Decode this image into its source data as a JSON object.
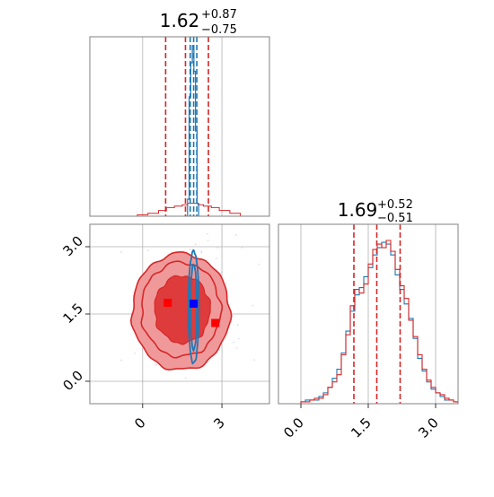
{
  "colors": {
    "red": "#d62728",
    "red_fill_outer": "#f0999a",
    "red_fill_inner": "#de3b3c",
    "blue": "#1f77b4",
    "grid": "#b0b0b0",
    "frame": "#808080"
  },
  "chart_data": [
    {
      "type": "histogram",
      "panel": "top-left",
      "title": {
        "value": "1.62",
        "plus": "+0.87",
        "minus": "−0.75"
      },
      "xlim": [
        -2.0,
        4.8
      ],
      "quantile_lines_red": [
        0.87,
        1.62,
        2.49
      ],
      "quantile_lines_blue": [
        1.8,
        1.93,
        2.05
      ],
      "gridlines_x": [
        0,
        3
      ],
      "red_bins": {
        "edges": [
          -2.0,
          -0.2,
          0.2,
          0.6,
          0.9,
          1.2,
          1.5,
          1.7,
          1.9,
          2.1,
          2.3,
          2.6,
          2.9,
          3.3,
          3.7,
          4.8
        ],
        "counts": [
          0,
          1,
          2,
          4,
          6,
          7,
          8,
          9,
          9,
          8,
          7,
          6,
          4,
          2,
          0
        ]
      },
      "blue_bins": {
        "edges": [
          1.7,
          1.76,
          1.82,
          1.88,
          1.94,
          2.0,
          2.06,
          2.12
        ],
        "counts": [
          20,
          140,
          180,
          200,
          170,
          100,
          15
        ]
      }
    },
    {
      "type": "scatter",
      "panel": "bottom-left",
      "xlim": [
        -2.0,
        4.8
      ],
      "ylim": [
        -0.5,
        3.5
      ],
      "x_ticks": [
        "0",
        "3"
      ],
      "x_tick_values": [
        0,
        3
      ],
      "y_ticks": [
        "0.0",
        "1.5",
        "3.0"
      ],
      "y_tick_values": [
        0.0,
        1.5,
        3.0
      ],
      "red_contours": [
        {
          "cx": 1.45,
          "cy": 1.55,
          "rx": 1.85,
          "ry": 1.3
        },
        {
          "cx": 1.45,
          "cy": 1.6,
          "rx": 1.5,
          "ry": 1.05
        },
        {
          "cx": 1.5,
          "cy": 1.6,
          "rx": 1.05,
          "ry": 0.75
        }
      ],
      "blue_contours": [
        {
          "cx": 1.93,
          "cy": 1.65,
          "rx": 0.2,
          "ry": 1.25
        },
        {
          "cx": 1.93,
          "cy": 1.65,
          "rx": 0.12,
          "ry": 0.95
        }
      ],
      "red_markers": [
        {
          "x": 0.95,
          "y": 1.75
        },
        {
          "x": 2.75,
          "y": 1.3
        }
      ],
      "blue_markers": [
        {
          "x": 1.93,
          "y": 1.73
        }
      ]
    },
    {
      "type": "histogram",
      "panel": "bottom-right",
      "title": {
        "value": "1.69",
        "plus": "+0.52",
        "minus": "−0.51"
      },
      "xlim": [
        -0.5,
        3.5
      ],
      "x_ticks": [
        "0.0",
        "1.5",
        "3.0"
      ],
      "x_tick_values": [
        0.0,
        1.5,
        3.0
      ],
      "quantile_lines_red": [
        1.18,
        1.69,
        2.21
      ],
      "gridlines_x": [
        0.0,
        1.5,
        3.0
      ],
      "red_counts": [
        0,
        0,
        0,
        0,
        0,
        1,
        1,
        2,
        3,
        3,
        5,
        9,
        12,
        16,
        27,
        38,
        54,
        63,
        61,
        66,
        77,
        85,
        88,
        86,
        90,
        84,
        74,
        65,
        58,
        46,
        37,
        27,
        19,
        13,
        9,
        6,
        5,
        3,
        2,
        1
      ],
      "blue_counts": [
        0,
        0,
        0,
        0,
        0,
        1,
        2,
        2,
        2,
        4,
        6,
        9,
        14,
        19,
        28,
        40,
        51,
        60,
        64,
        70,
        75,
        82,
        86,
        89,
        88,
        82,
        71,
        63,
        55,
        47,
        36,
        25,
        18,
        12,
        8,
        6,
        4,
        2,
        2,
        1
      ]
    }
  ]
}
